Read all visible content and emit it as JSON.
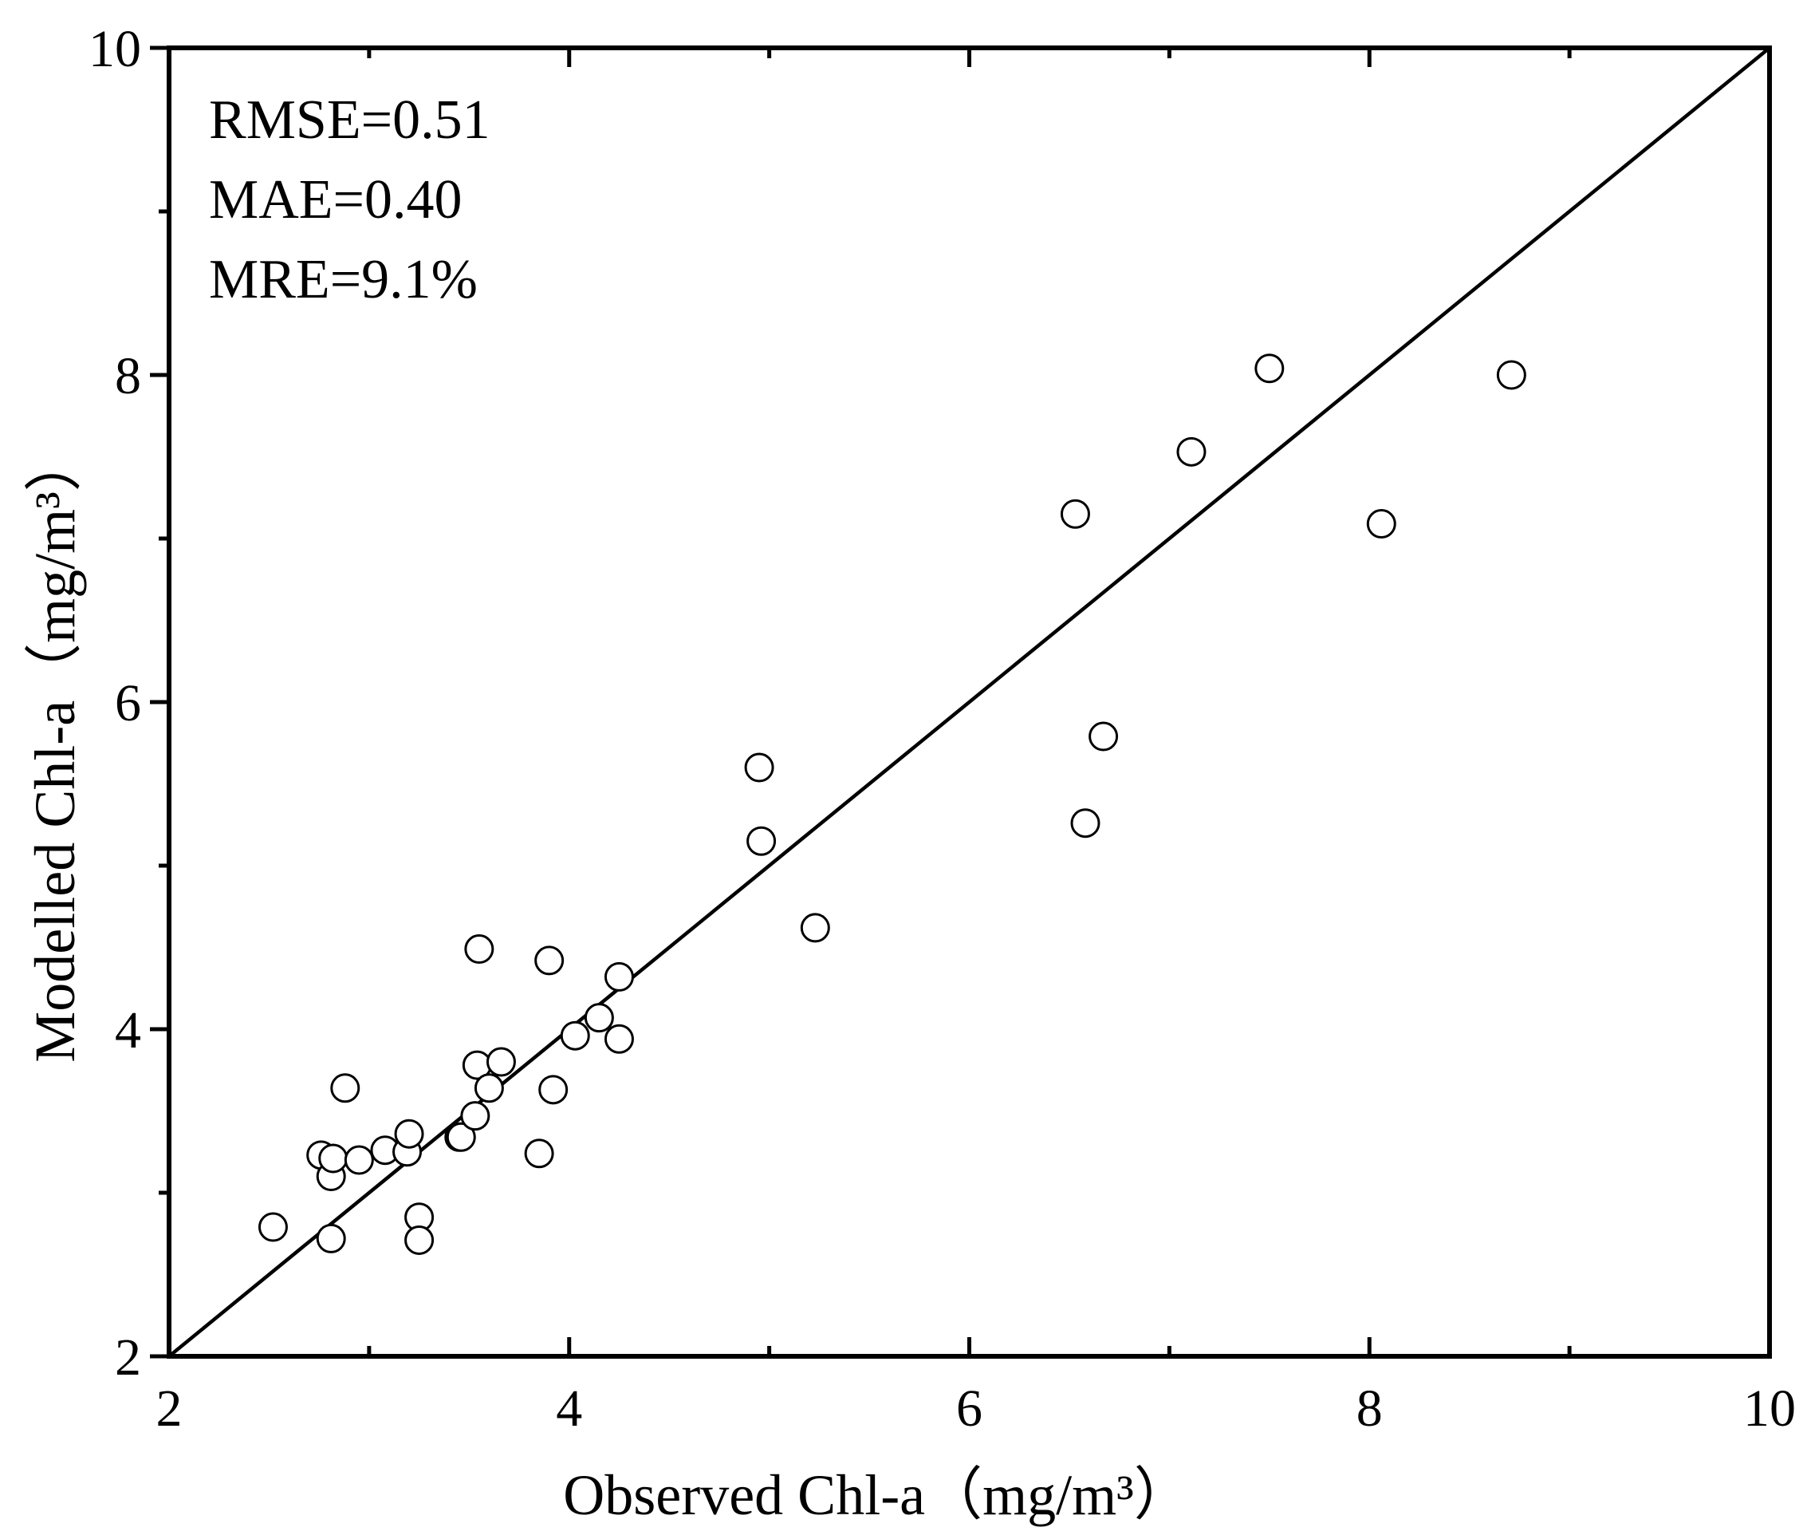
{
  "chart_data": {
    "type": "scatter",
    "title": "",
    "xlabel": "Observed Chl-a（mg/m³）",
    "ylabel": "Modelled Chl-a（mg/m³）",
    "xlim": [
      2,
      10
    ],
    "ylim": [
      2,
      10
    ],
    "x_ticks": [
      "2",
      "4",
      "6",
      "8",
      "10"
    ],
    "y_ticks": [
      "2",
      "4",
      "6",
      "8",
      "10"
    ],
    "grid": false,
    "reference_line": {
      "name": "1:1 line",
      "from": [
        2,
        2
      ],
      "to": [
        10,
        10
      ]
    },
    "annotations": [
      "RMSE=0.51",
      "MAE=0.40",
      "MRE=9.1%"
    ],
    "series": [
      {
        "name": "Observed vs Modelled",
        "marker": "open-circle",
        "points": [
          {
            "x": 2.52,
            "y": 2.79
          },
          {
            "x": 2.76,
            "y": 3.23
          },
          {
            "x": 2.81,
            "y": 3.1
          },
          {
            "x": 2.82,
            "y": 3.21
          },
          {
            "x": 2.81,
            "y": 2.72
          },
          {
            "x": 2.88,
            "y": 3.64
          },
          {
            "x": 2.95,
            "y": 3.2
          },
          {
            "x": 3.08,
            "y": 3.26
          },
          {
            "x": 3.19,
            "y": 3.25
          },
          {
            "x": 3.2,
            "y": 3.36
          },
          {
            "x": 3.25,
            "y": 2.85
          },
          {
            "x": 3.25,
            "y": 2.71
          },
          {
            "x": 3.45,
            "y": 3.34
          },
          {
            "x": 3.46,
            "y": 3.34
          },
          {
            "x": 3.53,
            "y": 3.47
          },
          {
            "x": 3.54,
            "y": 3.78
          },
          {
            "x": 3.55,
            "y": 4.49
          },
          {
            "x": 3.6,
            "y": 3.64
          },
          {
            "x": 3.66,
            "y": 3.8
          },
          {
            "x": 3.85,
            "y": 3.24
          },
          {
            "x": 3.9,
            "y": 4.42
          },
          {
            "x": 3.92,
            "y": 3.63
          },
          {
            "x": 4.03,
            "y": 3.96
          },
          {
            "x": 4.15,
            "y": 4.07
          },
          {
            "x": 4.25,
            "y": 4.32
          },
          {
            "x": 4.25,
            "y": 3.94
          },
          {
            "x": 4.95,
            "y": 5.6
          },
          {
            "x": 4.96,
            "y": 5.15
          },
          {
            "x": 5.23,
            "y": 4.62
          },
          {
            "x": 6.53,
            "y": 7.15
          },
          {
            "x": 6.58,
            "y": 5.26
          },
          {
            "x": 6.67,
            "y": 5.79
          },
          {
            "x": 7.11,
            "y": 7.53
          },
          {
            "x": 7.5,
            "y": 8.04
          },
          {
            "x": 8.06,
            "y": 7.09
          },
          {
            "x": 8.71,
            "y": 8.0
          }
        ]
      }
    ]
  }
}
